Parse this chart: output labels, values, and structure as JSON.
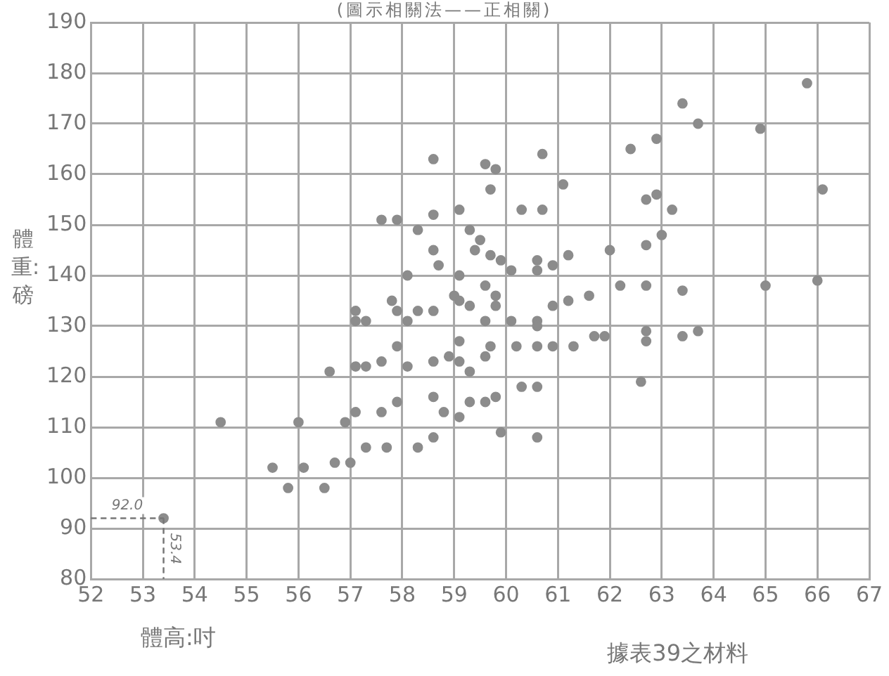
{
  "chart_data": {
    "type": "scatter",
    "title": "(圖示相關法——正相關)",
    "xlabel": "體高:吋",
    "ylabel": "體重:磅",
    "annotations": [
      {
        "text": "92.0",
        "x": 53.4,
        "y": 92
      },
      {
        "text": "53.4",
        "x": 53.4,
        "y": 92
      },
      "據表39之材料"
    ],
    "xlim": [
      52,
      67
    ],
    "ylim": [
      80,
      190
    ],
    "xticks": [
      52,
      53,
      54,
      55,
      56,
      57,
      58,
      59,
      60,
      61,
      62,
      63,
      64,
      65,
      66,
      67
    ],
    "yticks": [
      80,
      90,
      100,
      110,
      120,
      130,
      140,
      150,
      160,
      170,
      180,
      190
    ],
    "grid": true,
    "marker": "circle",
    "series": [
      {
        "color": "#8c8c8c",
        "x": [
          53.4,
          54.5,
          55.5,
          55.8,
          56.1,
          56.0,
          56.5,
          56.6,
          56.7,
          56.9,
          57.0,
          57.1,
          57.3,
          57.1,
          57.3,
          57.6,
          57.6,
          57.7,
          57.9,
          57.9,
          58.1,
          58.3,
          58.6,
          58.8,
          58.6,
          58.6,
          58.9,
          59.1,
          59.1,
          59.1,
          59.3,
          59.3,
          57.1,
          57.3,
          57.1,
          57.8,
          57.9,
          58.1,
          58.3,
          58.6,
          59.0,
          59.1,
          59.3,
          58.6,
          57.6,
          57.9,
          58.3,
          58.6,
          59.1,
          58.6,
          58.7,
          59.1,
          58.1,
          59.3,
          65.8,
          63.4,
          63.7,
          64.9,
          59.6,
          59.8,
          60.7,
          62.4,
          62.9,
          61.1,
          59.7,
          60.3,
          60.7,
          62.7,
          62.9,
          63.2,
          66.1,
          59.5,
          59.4,
          59.7,
          59.9,
          60.1,
          60.6,
          60.6,
          60.9,
          61.2,
          62.0,
          62.7,
          63.0,
          59.6,
          59.8,
          59.8,
          62.2,
          62.7,
          63.4,
          65.0,
          66.0,
          61.6,
          61.2,
          60.9,
          59.6,
          60.1,
          60.6,
          60.6,
          59.7,
          60.2,
          60.6,
          60.9,
          61.3,
          61.7,
          61.9,
          62.7,
          62.7,
          63.4,
          63.7,
          59.6,
          59.6,
          59.8,
          60.3,
          60.6,
          62.6,
          59.9,
          60.6
        ],
        "values": [
          92,
          111,
          102,
          98,
          102,
          111,
          98,
          121,
          103,
          111,
          103,
          113,
          106,
          122,
          122,
          123,
          113,
          106,
          115,
          126,
          122,
          106,
          108,
          113,
          116,
          123,
          124,
          112,
          123,
          127,
          115,
          121,
          133,
          131,
          131,
          135,
          133,
          131,
          133,
          133,
          136,
          135,
          134,
          163,
          151,
          151,
          149,
          152,
          153,
          145,
          142,
          140,
          140,
          149,
          178,
          174,
          170,
          169,
          162,
          161,
          164,
          165,
          167,
          158,
          157,
          153,
          153,
          155,
          156,
          153,
          157,
          147,
          145,
          144,
          143,
          141,
          143,
          141,
          142,
          144,
          145,
          146,
          148,
          138,
          136,
          134,
          138,
          138,
          137,
          138,
          139,
          136,
          135,
          134,
          131,
          131,
          131,
          130,
          126,
          126,
          126,
          126,
          126,
          128,
          128,
          129,
          127,
          128,
          129,
          124,
          115,
          116,
          118,
          118,
          119,
          109,
          108
        ]
      }
    ]
  }
}
